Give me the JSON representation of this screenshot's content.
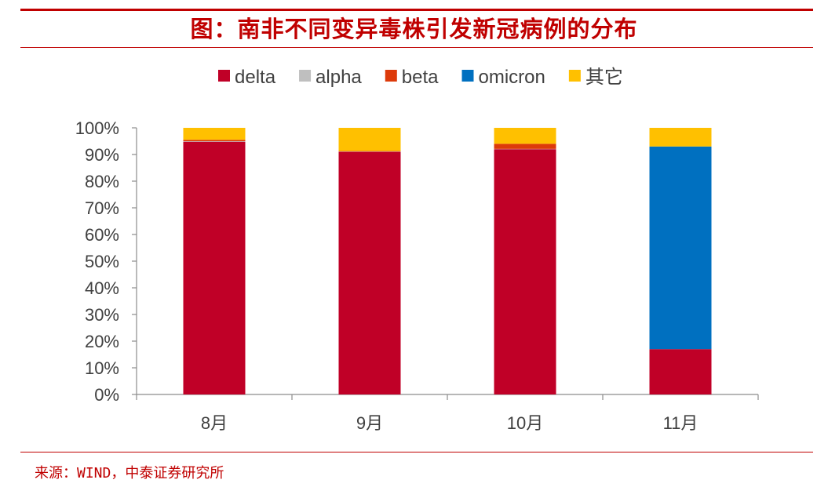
{
  "title": "图：南非不同变异毒株引发新冠病例的分布",
  "source": "来源：WIND，中泰证券研究所",
  "chart_data": {
    "type": "bar",
    "stacked": true,
    "percent": true,
    "categories": [
      "8月",
      "9月",
      "10月",
      "11月"
    ],
    "series": [
      {
        "name": "delta",
        "color": "#c00027",
        "values": [
          94.8,
          91.0,
          92.0,
          17.0
        ]
      },
      {
        "name": "alpha",
        "color": "#bfbfbf",
        "values": [
          0.2,
          0.1,
          0.1,
          0.0
        ]
      },
      {
        "name": "beta",
        "color": "#dd3a0a",
        "values": [
          0.5,
          0.2,
          1.9,
          0.0
        ]
      },
      {
        "name": "omicron",
        "color": "#0070c0",
        "values": [
          0.0,
          0.0,
          0.0,
          76.0
        ]
      },
      {
        "name": "其它",
        "color": "#ffc000",
        "values": [
          4.5,
          8.7,
          6.0,
          7.0
        ]
      }
    ],
    "ylim": [
      0,
      100
    ],
    "yticks": [
      "0%",
      "10%",
      "20%",
      "30%",
      "40%",
      "50%",
      "60%",
      "70%",
      "80%",
      "90%",
      "100%"
    ],
    "legend_position": "top",
    "grid": false
  }
}
